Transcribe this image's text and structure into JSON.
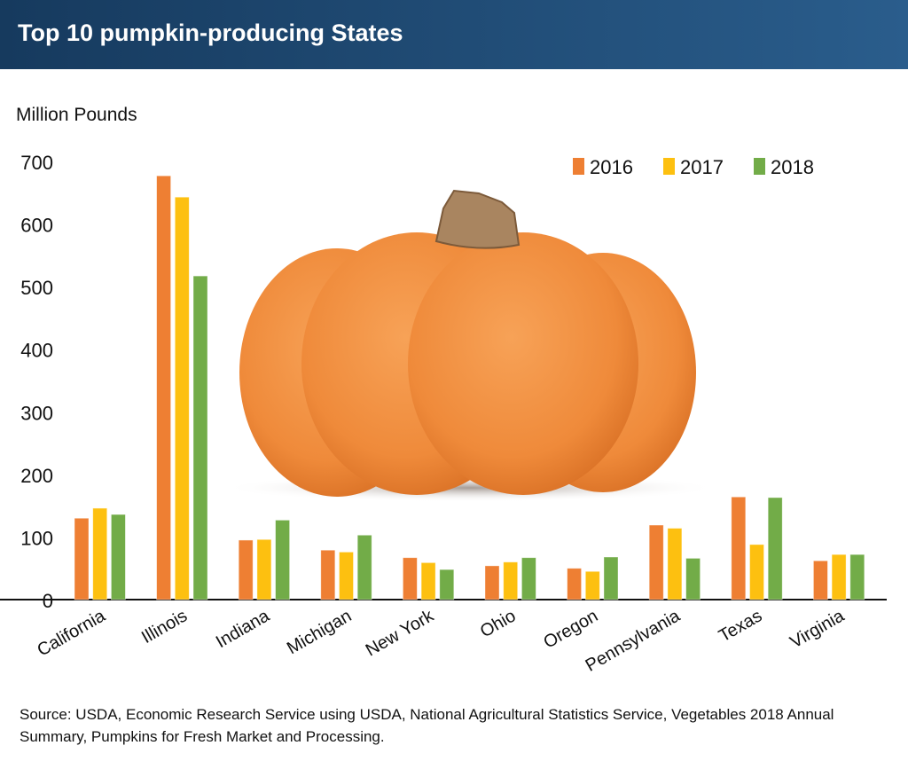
{
  "header": {
    "title": "Top 10 pumpkin-producing States"
  },
  "source": "Source: USDA, Economic Research Service using USDA, National Agricultural Statistics Service, Vegetables 2018 Annual Summary, Pumpkins for Fresh Market and Processing.",
  "chart_data": {
    "type": "bar",
    "title": "Top 10 pumpkin-producing States",
    "ylabel": "Million Pounds",
    "xlabel": "",
    "ylim": [
      0,
      700
    ],
    "yticks": [
      0,
      100,
      200,
      300,
      400,
      500,
      600,
      700
    ],
    "grid": false,
    "legend_position": "top-right",
    "categories": [
      "California",
      "Illinois",
      "Indiana",
      "Michigan",
      "New York",
      "Ohio",
      "Oregon",
      "Pennsylvania",
      "Texas",
      "Virginia"
    ],
    "series": [
      {
        "name": "2016",
        "color": "#ee7f33",
        "values": [
          130,
          677,
          95,
          79,
          67,
          54,
          50,
          119,
          164,
          62
        ]
      },
      {
        "name": "2017",
        "color": "#fdc010",
        "values": [
          146,
          643,
          96,
          76,
          59,
          60,
          45,
          114,
          88,
          72
        ]
      },
      {
        "name": "2018",
        "color": "#72ac48",
        "values": [
          136,
          517,
          127,
          103,
          48,
          67,
          68,
          66,
          163,
          72
        ]
      }
    ]
  }
}
